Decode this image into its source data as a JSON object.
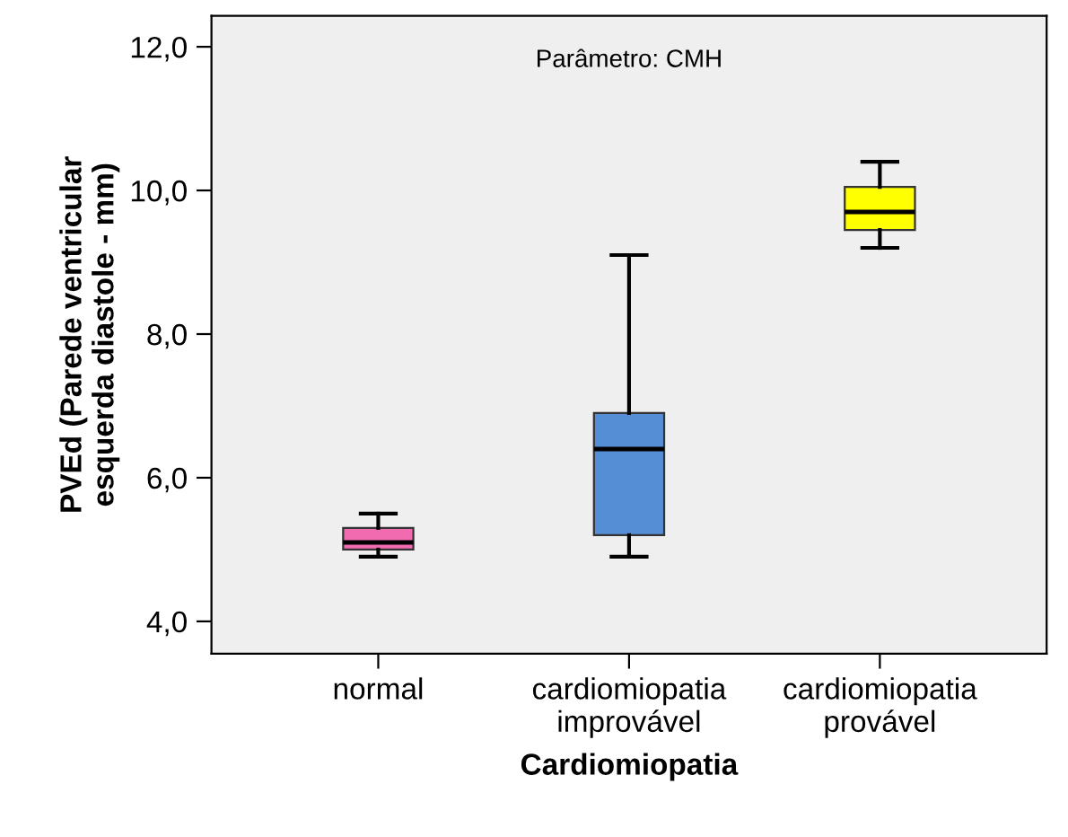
{
  "chart_data": {
    "type": "box",
    "xlabel": "Cardiomiopatia",
    "ylabel": "PVEd (Parede ventricular\nesquerda diastole - mm)",
    "annotations": [
      "Parâmetro: CMH"
    ],
    "categories": [
      "normal",
      "cardiomiopatia\nimprovável",
      "cardiomiopatia\nprovável"
    ],
    "colors": [
      "#f06bb0",
      "#558ed5",
      "#ffff00"
    ],
    "boxes": [
      {
        "low": 4.9,
        "q1": 5.0,
        "median": 5.1,
        "q3": 5.3,
        "high": 5.5
      },
      {
        "low": 4.9,
        "q1": 5.2,
        "median": 6.4,
        "q3": 6.9,
        "high": 9.1
      },
      {
        "low": 9.2,
        "q1": 9.45,
        "median": 9.7,
        "q3": 10.05,
        "high": 10.4
      }
    ],
    "ylim": [
      3.55,
      12.43
    ],
    "yticks": [
      {
        "value": 4,
        "label": "4,0"
      },
      {
        "value": 6,
        "label": "6,0"
      },
      {
        "value": 8,
        "label": "8,0"
      },
      {
        "value": 10,
        "label": "10,0"
      },
      {
        "value": 12,
        "label": "12,0"
      }
    ],
    "grid": false,
    "legend": false
  }
}
